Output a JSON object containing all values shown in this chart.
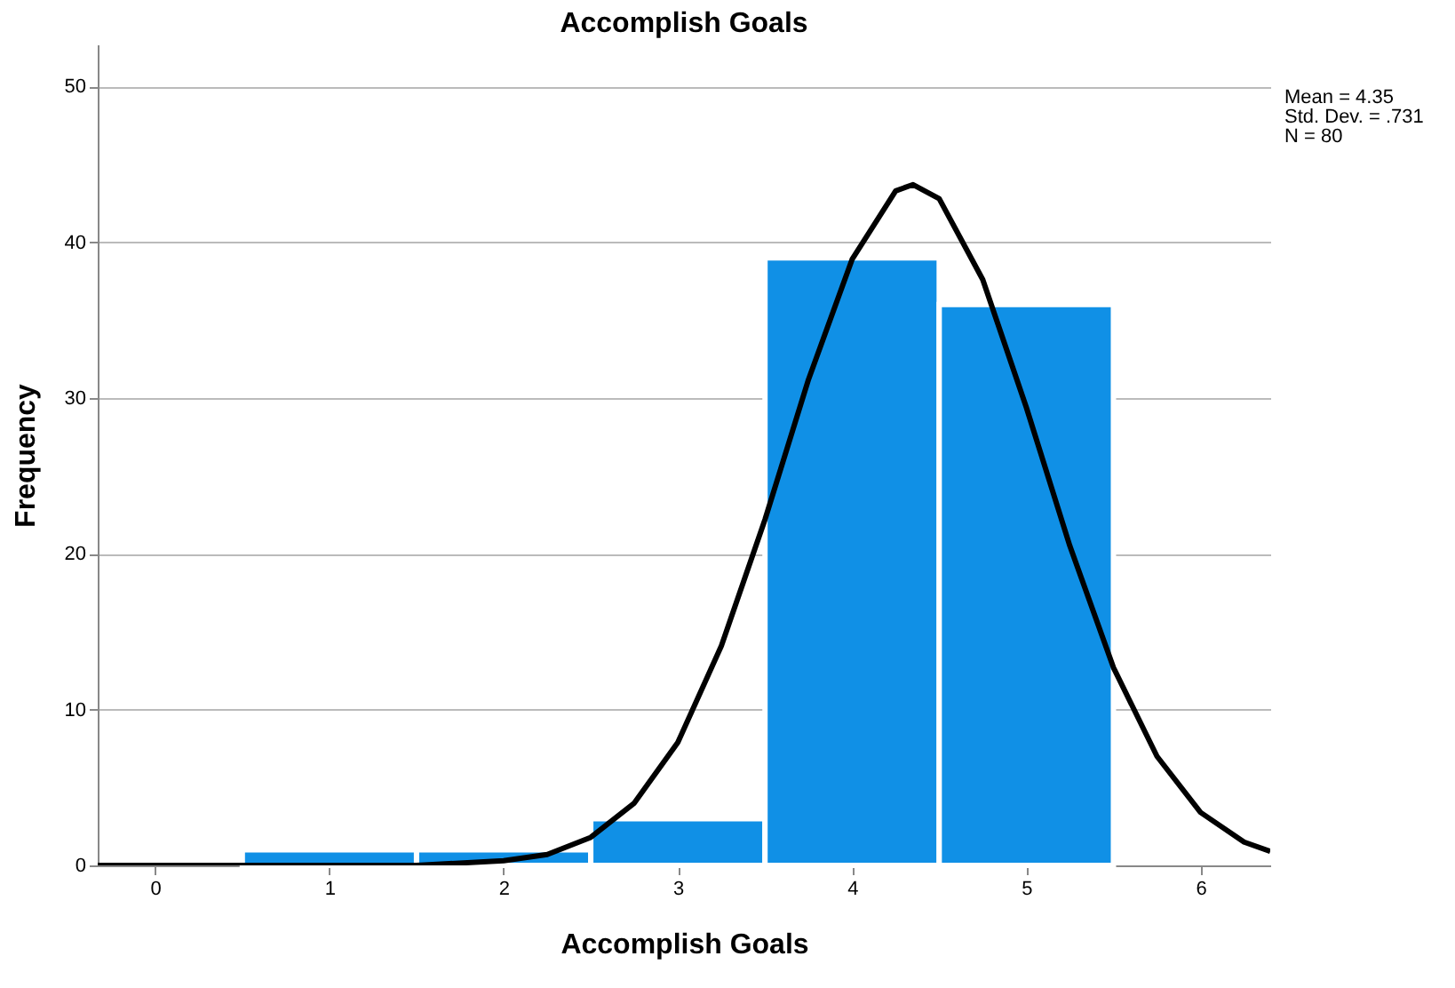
{
  "chart_data": {
    "type": "histogram",
    "title": "Accomplish Goals",
    "xlabel": "Accomplish Goals",
    "ylabel": "Frequency",
    "bins": [
      0.5,
      1.5,
      2.5,
      3.5,
      4.5,
      5.5
    ],
    "values": [
      1,
      1,
      3,
      39,
      36
    ],
    "color": "#1090e6",
    "series": [
      {
        "type": "line",
        "color": "#000000",
        "x": [
          -0.33,
          1,
          1.5,
          2,
          2.25,
          2.5,
          2.75,
          3,
          3.25,
          3.5,
          3.75,
          4,
          4.25,
          4.35,
          4.5,
          4.75,
          5,
          5.25,
          5.5,
          5.75,
          6,
          6.25,
          6.4
        ],
        "values": [
          0,
          0,
          0,
          0.3,
          0.7,
          1.8,
          4,
          7.9,
          14.1,
          22.2,
          31.2,
          38.9,
          43.3,
          43.7,
          42.8,
          37.6,
          29.4,
          20.5,
          12.7,
          7,
          3.4,
          1.5,
          0.9
        ]
      }
    ],
    "xlim": [
      -0.33,
      6.4
    ],
    "xticks": [
      0,
      1,
      2,
      3,
      4,
      5,
      6
    ],
    "ylim": [
      0,
      52.7
    ],
    "yticks": [
      0,
      10,
      20,
      30,
      40,
      50
    ],
    "grid": "y",
    "annotations": [
      "Mean = 4.35",
      "Std. Dev. = .731",
      "N = 80"
    ]
  }
}
